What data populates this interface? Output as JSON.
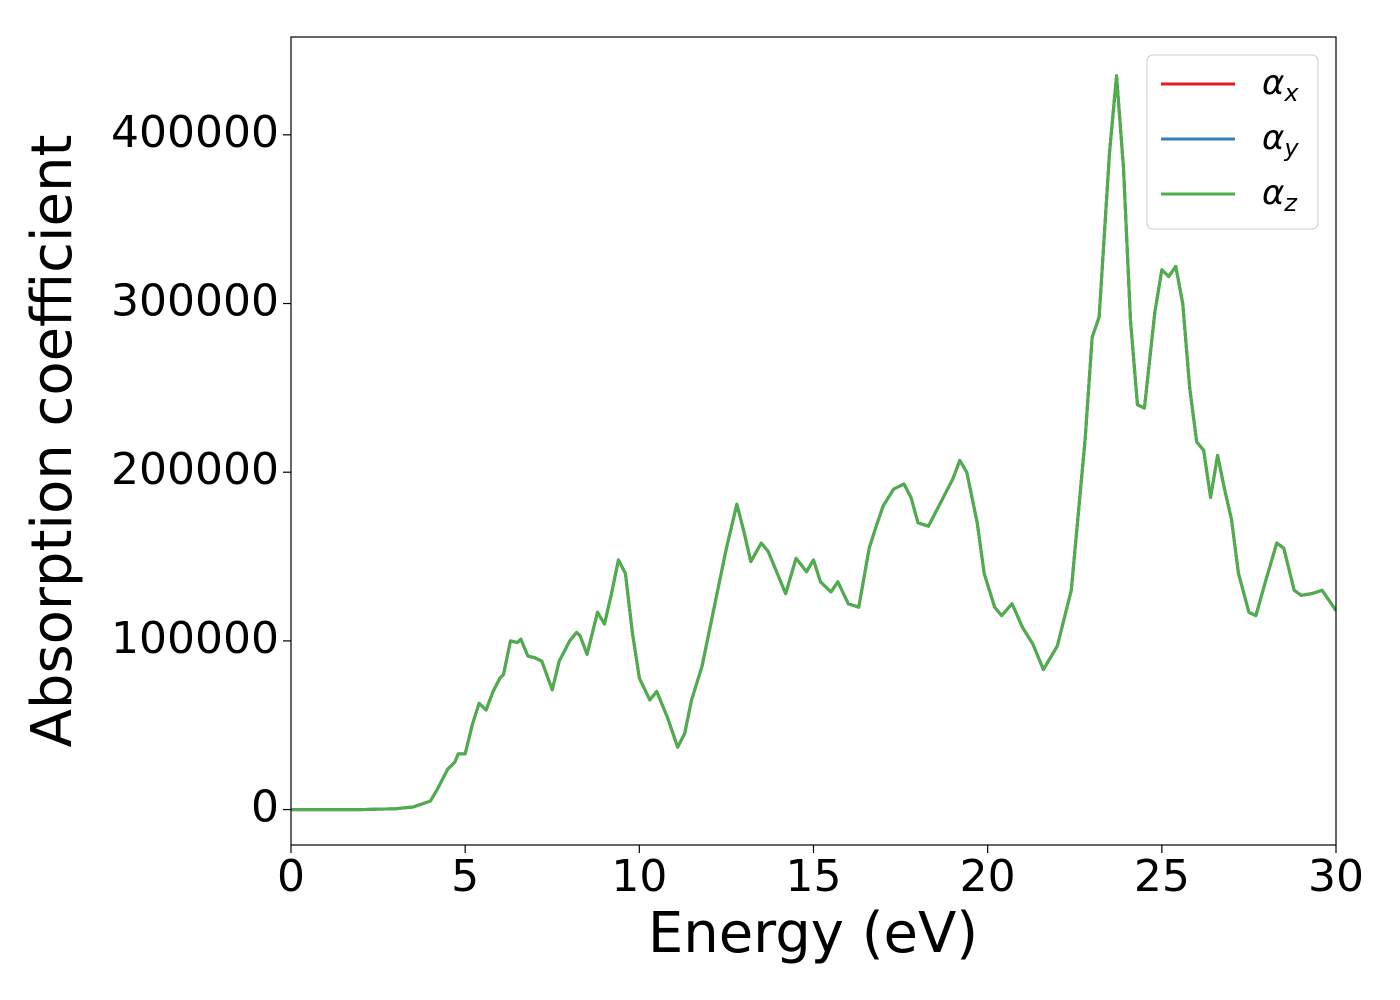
{
  "chart_data": {
    "type": "line",
    "xlabel": "Energy (eV)",
    "ylabel": "Absorption coefficient",
    "x": [
      0,
      1,
      2,
      3,
      3.5,
      4,
      4.2,
      4.5,
      4.7,
      4.8,
      5.0,
      5.2,
      5.4,
      5.6,
      5.8,
      6.0,
      6.1,
      6.3,
      6.5,
      6.6,
      6.8,
      7.0,
      7.2,
      7.5,
      7.7,
      8.0,
      8.2,
      8.3,
      8.5,
      8.8,
      9.0,
      9.2,
      9.4,
      9.6,
      9.8,
      10.0,
      10.3,
      10.5,
      10.8,
      11.1,
      11.3,
      11.5,
      11.8,
      12.2,
      12.5,
      12.8,
      13.0,
      13.2,
      13.5,
      13.7,
      13.9,
      14.2,
      14.5,
      14.8,
      15.0,
      15.2,
      15.5,
      15.7,
      16.0,
      16.3,
      16.6,
      16.8,
      17.0,
      17.3,
      17.6,
      17.8,
      18.0,
      18.3,
      18.6,
      19.0,
      19.2,
      19.4,
      19.7,
      19.9,
      20.2,
      20.4,
      20.7,
      21.0,
      21.3,
      21.6,
      22.0,
      22.4,
      22.8,
      23.0,
      23.2,
      23.5,
      23.7,
      23.9,
      24.1,
      24.3,
      24.5,
      24.8,
      25.0,
      25.2,
      25.4,
      25.6,
      25.8,
      26.0,
      26.2,
      26.4,
      26.6,
      26.8,
      27.0,
      27.2,
      27.5,
      27.7,
      28.0,
      28.3,
      28.5,
      28.8,
      29.0,
      29.3,
      29.6,
      30.0
    ],
    "series": [
      {
        "name": "αx",
        "color": "#e41a1c",
        "values": [
          0,
          0,
          0,
          500,
          1500,
          5000,
          12000,
          24000,
          28000,
          33000,
          33000,
          50000,
          63000,
          59000,
          70000,
          78000,
          80000,
          100000,
          99000,
          101000,
          91000,
          90000,
          88000,
          71000,
          88000,
          100000,
          105000,
          103000,
          92000,
          117000,
          110000,
          128000,
          148000,
          140000,
          105000,
          78000,
          65000,
          70000,
          55000,
          37000,
          45000,
          65000,
          85000,
          125000,
          155000,
          181000,
          165000,
          147000,
          158000,
          153000,
          143000,
          128000,
          149000,
          141000,
          148000,
          135000,
          129000,
          135000,
          122000,
          120000,
          155000,
          168000,
          180000,
          190000,
          193000,
          185000,
          170000,
          168000,
          180000,
          196000,
          207000,
          200000,
          170000,
          140000,
          120000,
          115000,
          122000,
          108000,
          98000,
          83000,
          97000,
          130000,
          220000,
          280000,
          292000,
          390000,
          435000,
          380000,
          290000,
          240000,
          238000,
          295000,
          320000,
          316000,
          322000,
          300000,
          250000,
          218000,
          213000,
          185000,
          210000,
          190000,
          172000,
          140000,
          117000,
          115000,
          137000,
          158000,
          155000,
          130000,
          127000,
          128000,
          130000,
          118000
        ]
      },
      {
        "name": "αy",
        "color": "#377eb8",
        "values": [
          0,
          0,
          0,
          500,
          1500,
          5000,
          12000,
          24000,
          28000,
          33000,
          33000,
          50000,
          63000,
          59000,
          70000,
          78000,
          80000,
          100000,
          99000,
          101000,
          91000,
          90000,
          88000,
          71000,
          88000,
          100000,
          105000,
          103000,
          92000,
          117000,
          110000,
          128000,
          148000,
          140000,
          105000,
          78000,
          65000,
          70000,
          55000,
          37000,
          45000,
          65000,
          85000,
          125000,
          155000,
          181000,
          165000,
          147000,
          158000,
          153000,
          143000,
          128000,
          149000,
          141000,
          148000,
          135000,
          129000,
          135000,
          122000,
          120000,
          155000,
          168000,
          180000,
          190000,
          193000,
          185000,
          170000,
          168000,
          180000,
          196000,
          207000,
          200000,
          170000,
          140000,
          120000,
          115000,
          122000,
          108000,
          98000,
          83000,
          97000,
          130000,
          220000,
          280000,
          292000,
          390000,
          435000,
          380000,
          290000,
          240000,
          238000,
          295000,
          320000,
          316000,
          322000,
          300000,
          250000,
          218000,
          213000,
          185000,
          210000,
          190000,
          172000,
          140000,
          117000,
          115000,
          137000,
          158000,
          155000,
          130000,
          127000,
          128000,
          130000,
          118000
        ]
      },
      {
        "name": "αz",
        "color": "#4daf4a",
        "values": [
          0,
          0,
          0,
          500,
          1500,
          5000,
          12000,
          24000,
          28000,
          33000,
          33000,
          50000,
          63000,
          59000,
          70000,
          78000,
          80000,
          100000,
          99000,
          101000,
          91000,
          90000,
          88000,
          71000,
          88000,
          100000,
          105000,
          103000,
          92000,
          117000,
          110000,
          128000,
          148000,
          140000,
          105000,
          78000,
          65000,
          70000,
          55000,
          37000,
          45000,
          65000,
          85000,
          125000,
          155000,
          181000,
          165000,
          147000,
          158000,
          153000,
          143000,
          128000,
          149000,
          141000,
          148000,
          135000,
          129000,
          135000,
          122000,
          120000,
          155000,
          168000,
          180000,
          190000,
          193000,
          185000,
          170000,
          168000,
          180000,
          196000,
          207000,
          200000,
          170000,
          140000,
          120000,
          115000,
          122000,
          108000,
          98000,
          83000,
          97000,
          130000,
          220000,
          280000,
          292000,
          390000,
          435000,
          380000,
          290000,
          240000,
          238000,
          295000,
          320000,
          316000,
          322000,
          300000,
          250000,
          218000,
          213000,
          185000,
          210000,
          190000,
          172000,
          140000,
          117000,
          115000,
          137000,
          158000,
          155000,
          130000,
          127000,
          128000,
          130000,
          118000
        ]
      }
    ],
    "xlim": [
      0,
      30
    ],
    "xticks": [
      0,
      5,
      10,
      15,
      20,
      25,
      30
    ],
    "ylim": [
      -21000,
      458000
    ],
    "yticks": [
      0,
      100000,
      200000,
      300000,
      400000
    ],
    "legend": "upper right"
  }
}
